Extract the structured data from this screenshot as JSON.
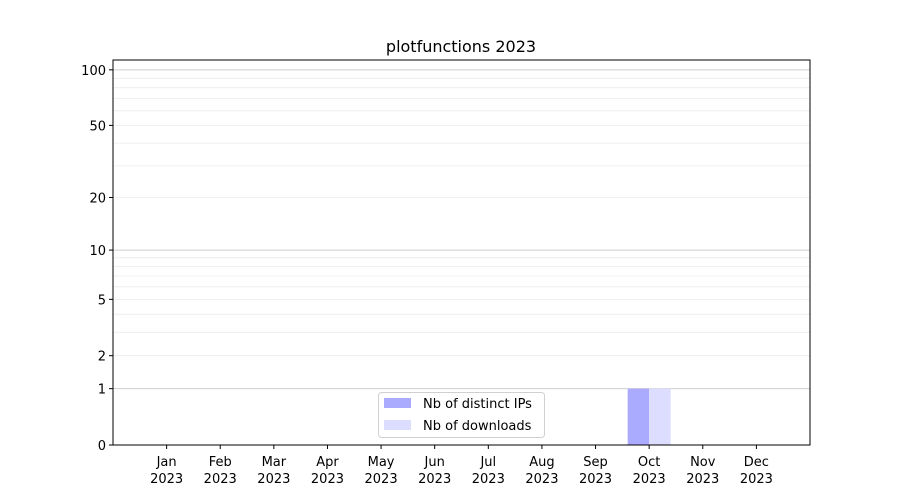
{
  "chart_data": {
    "type": "bar",
    "title": "plotfunctions 2023",
    "xlabel": "",
    "ylabel": "",
    "y_scale": "log(1+y)",
    "ylim": [
      0,
      113
    ],
    "y_ticks": [
      0,
      1,
      2,
      5,
      10,
      20,
      50,
      100
    ],
    "grid": true,
    "legend_position": "lower-center",
    "categories": [
      [
        "Jan",
        "2023"
      ],
      [
        "Feb",
        "2023"
      ],
      [
        "Mar",
        "2023"
      ],
      [
        "Apr",
        "2023"
      ],
      [
        "May",
        "2023"
      ],
      [
        "Jun",
        "2023"
      ],
      [
        "Jul",
        "2023"
      ],
      [
        "Aug",
        "2023"
      ],
      [
        "Sep",
        "2023"
      ],
      [
        "Oct",
        "2023"
      ],
      [
        "Nov",
        "2023"
      ],
      [
        "Dec",
        "2023"
      ]
    ],
    "series": [
      {
        "name": "Nb of distinct IPs",
        "color": "#aaaaff",
        "values": [
          0,
          0,
          0,
          0,
          0,
          0,
          0,
          0,
          0,
          1,
          0,
          0
        ]
      },
      {
        "name": "Nb of downloads",
        "color": "#ddddff",
        "values": [
          0,
          0,
          0,
          0,
          0,
          0,
          0,
          0,
          0,
          1,
          0,
          0
        ]
      }
    ]
  }
}
